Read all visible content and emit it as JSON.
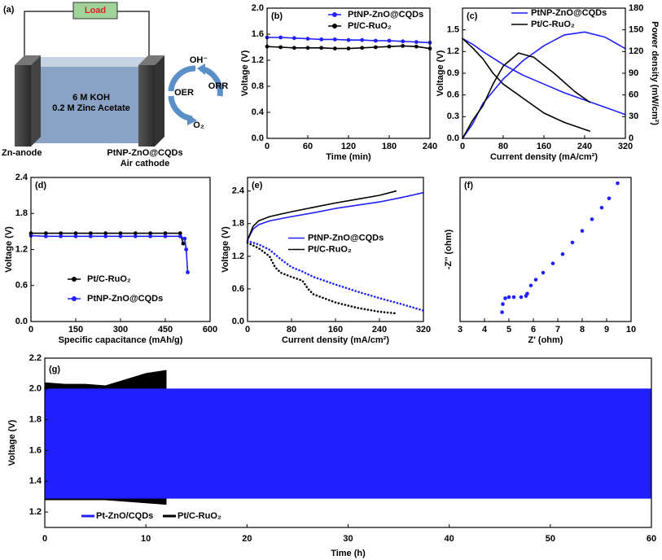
{
  "diagram": {
    "panel_label": "(a)",
    "load": "Load",
    "electrolyte_1": "6 M KOH",
    "electrolyte_2": "0.2 M Zinc Acetate",
    "oh": "OH⁻",
    "o2": "O₂",
    "oer": "OER",
    "orr": "ORR",
    "anode": "Zn-anode",
    "cathode_1": "PtNP-ZnO@CQDs",
    "cathode_2": "Air cathode"
  },
  "chart_data": [
    {
      "type": "line",
      "panel_label": "(b)",
      "x_label": "Time (min)",
      "y_label": "Voltage (V)",
      "xlim": [
        0,
        240
      ],
      "xticks": [
        0,
        60,
        120,
        180,
        240
      ],
      "ylim": [
        0,
        2.0
      ],
      "yticks": [
        {
          "value": 0,
          "label": "0.0"
        },
        0.4,
        0.8,
        1.2,
        1.6,
        {
          "value": 2.0,
          "label": "2.0"
        }
      ],
      "legend": "upper right",
      "x": [
        0,
        20,
        40,
        60,
        80,
        100,
        120,
        140,
        160,
        180,
        200,
        220,
        240
      ],
      "series": [
        {
          "name": "PtNP-ZnO@CQDs",
          "color": "#1f1fff",
          "marker": "circle",
          "values": [
            1.55,
            1.55,
            1.54,
            1.53,
            1.52,
            1.52,
            1.51,
            1.51,
            1.5,
            1.5,
            1.49,
            1.48,
            1.47
          ]
        },
        {
          "name": "Pt/C-RuO₂",
          "color": "#000000",
          "marker": "circle",
          "values": [
            1.41,
            1.4,
            1.39,
            1.39,
            1.39,
            1.38,
            1.38,
            1.39,
            1.4,
            1.41,
            1.42,
            1.41,
            1.38
          ]
        }
      ]
    },
    {
      "type": "line",
      "panel_label": "(c)",
      "x_label": "Current density (mA/cm²)",
      "y_label": "Voltage (V)",
      "y2_label": "Power density (mW/cm²)",
      "xlim": [
        0,
        320
      ],
      "xticks": [
        0,
        80,
        160,
        240,
        320
      ],
      "ylim": [
        0,
        1.8
      ],
      "yticks": [
        {
          "value": 0,
          "label": "0.0"
        },
        0.3,
        0.6,
        0.9,
        1.2,
        1.5
      ],
      "y2lim": [
        0,
        180
      ],
      "y2ticks": [
        0,
        30,
        60,
        90,
        120,
        150,
        180
      ],
      "legend": "upper left",
      "series": [
        {
          "name": "PtNP-ZnO@CQDs",
          "color": "#1f1fff",
          "x": [
            0,
            20,
            40,
            80,
            120,
            160,
            200,
            240,
            280,
            320
          ],
          "values": [
            1.38,
            1.3,
            1.2,
            1.02,
            0.87,
            0.75,
            0.63,
            0.53,
            0.43,
            0.33
          ]
        },
        {
          "name": "Pt/C-RuO₂",
          "color": "#000000",
          "x": [
            0,
            20,
            40,
            60,
            80,
            120,
            160,
            200,
            250
          ],
          "values": [
            1.38,
            1.25,
            1.1,
            0.9,
            0.75,
            0.55,
            0.35,
            0.22,
            0.1
          ]
        },
        {
          "color": "#1f1fff",
          "axis": "y2",
          "x": [
            0,
            10,
            20,
            40,
            80,
            120,
            160,
            200,
            240,
            280,
            320
          ],
          "values": [
            0,
            10,
            20,
            48,
            82,
            108,
            128,
            143,
            147,
            140,
            124
          ]
        },
        {
          "color": "#000000",
          "axis": "y2",
          "x": [
            0,
            20,
            40,
            60,
            80,
            110,
            140,
            180,
            220,
            250
          ],
          "values": [
            0,
            25,
            45,
            75,
            100,
            118,
            112,
            90,
            65,
            50
          ]
        }
      ]
    },
    {
      "type": "line",
      "panel_label": "(d)",
      "x_label": "Specific capacitance (mAh/g)",
      "y_label": "Voltage (V)",
      "xlim": [
        0,
        600
      ],
      "xticks": [
        0,
        150,
        300,
        450,
        600
      ],
      "ylim": [
        0,
        2.4
      ],
      "yticks": [
        {
          "value": 0,
          "label": "0.0"
        },
        0.6,
        1.2,
        1.8,
        2.4
      ],
      "legend": "lower left",
      "series": [
        {
          "name": "Pt/C-RuO₂",
          "color": "#000000",
          "marker": "circle",
          "x": [
            0,
            50,
            100,
            150,
            200,
            250,
            300,
            350,
            400,
            450,
            500,
            510
          ],
          "values": [
            1.47,
            1.47,
            1.47,
            1.47,
            1.47,
            1.47,
            1.47,
            1.47,
            1.47,
            1.47,
            1.47,
            1.3
          ]
        },
        {
          "name": "PtNP-ZnO@CQDs",
          "color": "#1f1fff",
          "marker": "circle",
          "x": [
            0,
            50,
            100,
            150,
            200,
            250,
            300,
            350,
            400,
            450,
            500,
            515,
            520,
            525
          ],
          "values": [
            1.43,
            1.42,
            1.42,
            1.42,
            1.42,
            1.42,
            1.42,
            1.42,
            1.42,
            1.42,
            1.42,
            1.38,
            1.2,
            0.82
          ]
        }
      ]
    },
    {
      "type": "line",
      "panel_label": "(e)",
      "x_label": "Current density (mA/cm²)",
      "y_label": "Voltage (V)",
      "xlim": [
        0,
        320
      ],
      "xticks": [
        0,
        80,
        160,
        240,
        320
      ],
      "ylim": [
        0,
        2.65
      ],
      "yticks": [
        {
          "value": 0,
          "label": "0.0"
        },
        0.6,
        1.2,
        1.8,
        2.4
      ],
      "legend": "center",
      "series": [
        {
          "name": "PtNP-ZnO@CQDs",
          "color": "#1f1fff",
          "x": [
            0,
            10,
            20,
            40,
            80,
            120,
            160,
            200,
            240,
            280,
            320
          ],
          "values": [
            1.5,
            1.7,
            1.78,
            1.85,
            1.93,
            2.0,
            2.08,
            2.14,
            2.2,
            2.28,
            2.37
          ]
        },
        {
          "name": "Pt/C-RuO₂",
          "color": "#000000",
          "x": [
            0,
            10,
            20,
            40,
            80,
            120,
            160,
            200,
            240,
            270
          ],
          "values": [
            1.5,
            1.75,
            1.85,
            1.93,
            2.02,
            2.1,
            2.18,
            2.25,
            2.32,
            2.4
          ]
        },
        {
          "color": "#1f1fff",
          "line_style": "dotted",
          "x": [
            0,
            20,
            40,
            60,
            80,
            100,
            120,
            160,
            200,
            240,
            280,
            320
          ],
          "values": [
            1.48,
            1.42,
            1.32,
            1.15,
            1.0,
            0.92,
            0.82,
            0.68,
            0.55,
            0.43,
            0.32,
            0.2
          ]
        },
        {
          "color": "#000000",
          "line_style": "dotted",
          "x": [
            0,
            20,
            40,
            50,
            60,
            80,
            100,
            110,
            120,
            160,
            200,
            240,
            270
          ],
          "values": [
            1.45,
            1.35,
            1.2,
            1.0,
            0.9,
            0.82,
            0.75,
            0.6,
            0.5,
            0.35,
            0.25,
            0.18,
            0.15
          ]
        }
      ]
    },
    {
      "type": "scatter",
      "panel_label": "(f)",
      "x_label": "Z' (ohm)",
      "y_label": "-Z'' (ohm)",
      "xlim": [
        3,
        10
      ],
      "xticks": [
        3,
        4,
        5,
        6,
        7,
        8,
        9,
        10
      ],
      "ylim": [
        0,
        6.2
      ],
      "series": [
        {
          "color": "#1f1fff",
          "x": [
            4.72,
            4.75,
            4.85,
            5.0,
            5.2,
            5.5,
            5.7,
            5.75,
            5.9,
            6.1,
            6.4,
            6.8,
            7.2,
            7.6,
            8.0,
            8.4,
            8.8,
            9.1,
            9.45
          ],
          "values": [
            0.4,
            0.75,
            1.0,
            1.05,
            1.05,
            1.05,
            1.1,
            1.2,
            1.55,
            1.8,
            2.1,
            2.5,
            2.9,
            3.4,
            3.9,
            4.4,
            4.9,
            5.3,
            5.95
          ]
        }
      ]
    },
    {
      "type": "band",
      "panel_label": "(g)",
      "x_label": "Time (h)",
      "y_label": "Voltage (V)",
      "xlim": [
        0,
        60
      ],
      "xticks": [
        0,
        10,
        20,
        30,
        40,
        50,
        60
      ],
      "ylim": [
        1.1,
        2.2
      ],
      "yticks": [
        1.2,
        1.4,
        1.6,
        1.8,
        {
          "value": 2.0,
          "label": "2.0"
        },
        2.2
      ],
      "legend": "lower left",
      "series": [
        {
          "name": "Pt-ZnO/CQDs",
          "color": "#1f1fff",
          "x": [
            0,
            60
          ],
          "high": [
            2.0,
            2.0
          ],
          "low": [
            1.29,
            1.29
          ]
        },
        {
          "name": "Pt/C-RuO₂",
          "color": "#000000",
          "x": [
            0,
            2,
            4,
            6,
            8,
            10,
            12
          ],
          "high": [
            2.04,
            2.03,
            2.03,
            2.02,
            2.06,
            2.1,
            2.12
          ],
          "low": [
            1.28,
            1.28,
            1.28,
            1.28,
            1.27,
            1.26,
            1.25
          ]
        }
      ]
    }
  ]
}
